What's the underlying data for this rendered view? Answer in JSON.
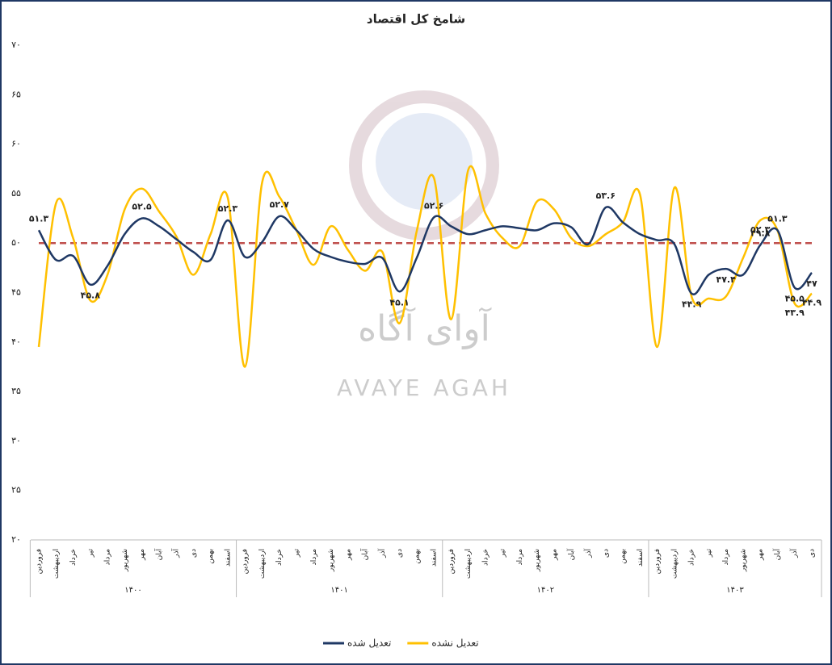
{
  "chart_data": {
    "type": "line",
    "title": "شامخ کل اقتصاد",
    "watermark": [
      "آوای آگاه",
      "AVAYE AGAH"
    ],
    "categories": [
      "فروردین",
      "اردیبهشت",
      "خرداد",
      "تیر",
      "مرداد",
      "شهریور",
      "مهر",
      "آبان",
      "آذر",
      "دی",
      "بهمن",
      "اسفند",
      "فروردین",
      "اردیبهشت",
      "خرداد",
      "تیر",
      "مرداد",
      "شهریور",
      "مهر",
      "آبان",
      "آذر",
      "دی",
      "بهمن",
      "اسفند",
      "فروردین",
      "اردیبهشت",
      "خرداد",
      "تیر",
      "مرداد",
      "شهریور",
      "مهر",
      "آبان",
      "آذر",
      "دی",
      "بهمن",
      "اسفند",
      "فروردین",
      "اردیبهشت",
      "خرداد",
      "تیر",
      "مرداد",
      "شهریور",
      "مهر",
      "آبان",
      "آذر",
      "دی"
    ],
    "category_groups": [
      "۱۴۰۰",
      "۱۴۰۱",
      "۱۴۰۲",
      "۱۴۰۳"
    ],
    "ylim": [
      20,
      70
    ],
    "yticks": [
      {
        "value": 20,
        "label": "۲۰"
      },
      {
        "value": 25,
        "label": "۲۵"
      },
      {
        "value": 30,
        "label": "۳۰"
      },
      {
        "value": 35,
        "label": "۳۵"
      },
      {
        "value": 40,
        "label": "۴۰"
      },
      {
        "value": 45,
        "label": "۴۵"
      },
      {
        "value": 50,
        "label": "۵۰"
      },
      {
        "value": 55,
        "label": "۵۵"
      },
      {
        "value": 60,
        "label": "۶۰"
      },
      {
        "value": 65,
        "label": "۶۵"
      },
      {
        "value": 70,
        "label": "۷۰"
      }
    ],
    "reference_line": {
      "value": 50,
      "color": "#c0504d"
    },
    "legend": "bottom",
    "series": [
      {
        "name": "تعدیل شده",
        "color": "#1f3864",
        "values": [
          51.3,
          48.3,
          48.7,
          45.8,
          47.7,
          50.9,
          52.5,
          51.7,
          50.4,
          49.1,
          48.3,
          52.3,
          48.6,
          50.1,
          52.7,
          51.3,
          49.4,
          48.6,
          48.1,
          47.9,
          48.5,
          45.1,
          48.5,
          52.6,
          51.7,
          50.9,
          51.3,
          51.7,
          51.5,
          51.3,
          52.0,
          51.6,
          49.9,
          53.6,
          52.1,
          50.9,
          50.3,
          49.9,
          44.9,
          46.8,
          47.4,
          46.8,
          49.8,
          51.3,
          45.5,
          47
        ],
        "value_labels": [
          "۵۱.۳",
          null,
          null,
          "۴۵.۸",
          null,
          null,
          "۵۲.۵",
          null,
          null,
          null,
          null,
          "۵۲.۳",
          null,
          null,
          "۵۲.۷",
          null,
          null,
          null,
          null,
          null,
          null,
          "۴۵.۱",
          null,
          "۵۲.۶",
          null,
          null,
          null,
          null,
          null,
          null,
          null,
          null,
          null,
          "۵۳.۶",
          null,
          null,
          null,
          null,
          "۴۴.۹",
          null,
          "۴۷.۴",
          null,
          "۴۹.۸",
          "۵۱.۳",
          "۴۵.۵",
          "۴۷"
        ]
      },
      {
        "name": "تعدیل نشده",
        "color": "#ffc000",
        "values": [
          39.5,
          54.0,
          50.5,
          44.2,
          46.8,
          53.4,
          55.5,
          53.2,
          50.7,
          46.8,
          50.9,
          54.6,
          37.5,
          56.1,
          54.7,
          51.3,
          47.8,
          51.7,
          49.3,
          47.2,
          49.1,
          41.9,
          51.2,
          56.6,
          42.3,
          57.4,
          53.0,
          50.5,
          49.7,
          54.2,
          53.4,
          50.5,
          49.7,
          50.9,
          52.1,
          54.9,
          39.5,
          55.6,
          44.6,
          44.4,
          44.6,
          48.5,
          52.3,
          51.3,
          43.9,
          44.9
        ],
        "value_labels": [
          null,
          null,
          null,
          null,
          null,
          null,
          null,
          null,
          null,
          null,
          null,
          null,
          null,
          null,
          null,
          null,
          null,
          null,
          null,
          null,
          null,
          null,
          null,
          null,
          null,
          null,
          null,
          null,
          null,
          null,
          null,
          null,
          null,
          null,
          null,
          null,
          null,
          null,
          null,
          null,
          null,
          null,
          "۵۲.۳",
          null,
          "۴۳.۹",
          "۴۴.۹"
        ]
      }
    ]
  }
}
